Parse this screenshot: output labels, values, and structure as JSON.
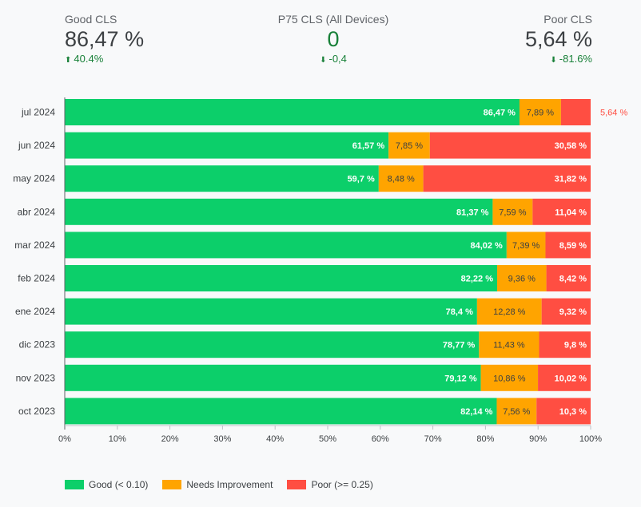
{
  "kpis": {
    "good": {
      "label": "Good CLS",
      "value": "86,47 %",
      "delta": "40.4%",
      "arrow": "⬆"
    },
    "p75": {
      "label": "P75 CLS (All Devices)",
      "value": "0",
      "delta": "-0,4",
      "arrow": "⬇"
    },
    "poor": {
      "label": "Poor CLS",
      "value": "5,64 %",
      "delta": "-81.6%",
      "arrow": "⬇"
    }
  },
  "colors": {
    "good": "#0ccf6a",
    "needs": "#ffa400",
    "poor": "#ff4e42",
    "positive_delta": "#188038"
  },
  "chart_data": {
    "type": "bar",
    "orientation": "horizontal",
    "stacked": "percent",
    "categories": [
      "jul 2024",
      "jun 2024",
      "may 2024",
      "abr 2024",
      "mar 2024",
      "feb 2024",
      "ene 2024",
      "dic 2023",
      "nov 2023",
      "oct 2023"
    ],
    "series": [
      {
        "name": "Good (< 0.10)",
        "color": "#0ccf6a",
        "values": [
          86.47,
          61.57,
          59.7,
          81.37,
          84.02,
          82.22,
          78.4,
          78.77,
          79.12,
          82.14
        ],
        "labels": [
          "86,47 %",
          "61,57 %",
          "59,7 %",
          "81,37 %",
          "84,02 %",
          "82,22 %",
          "78,4 %",
          "78,77 %",
          "79,12 %",
          "82,14 %"
        ]
      },
      {
        "name": "Needs Improvement",
        "color": "#ffa400",
        "values": [
          7.89,
          7.85,
          8.48,
          7.59,
          7.39,
          9.36,
          12.28,
          11.43,
          10.86,
          7.56
        ],
        "labels": [
          "7,89 %",
          "7,85 %",
          "8,48 %",
          "7,59 %",
          "7,39 %",
          "9,36 %",
          "12,28 %",
          "11,43 %",
          "10,86 %",
          "7,56 %"
        ]
      },
      {
        "name": "Poor (>= 0.25)",
        "color": "#ff4e42",
        "values": [
          5.64,
          30.58,
          31.82,
          11.04,
          8.59,
          8.42,
          9.32,
          9.8,
          10.02,
          10.3
        ],
        "labels": [
          "5,64 %",
          "30,58 %",
          "31,82 %",
          "11,04 %",
          "8,59 %",
          "8,42 %",
          "9,32 %",
          "9,8 %",
          "10,02 %",
          "10,3 %"
        ]
      }
    ],
    "xlim": [
      0,
      100
    ],
    "xticks": [
      "0%",
      "10%",
      "20%",
      "30%",
      "40%",
      "50%",
      "60%",
      "70%",
      "80%",
      "90%",
      "100%"
    ],
    "legend_position": "bottom-left"
  }
}
